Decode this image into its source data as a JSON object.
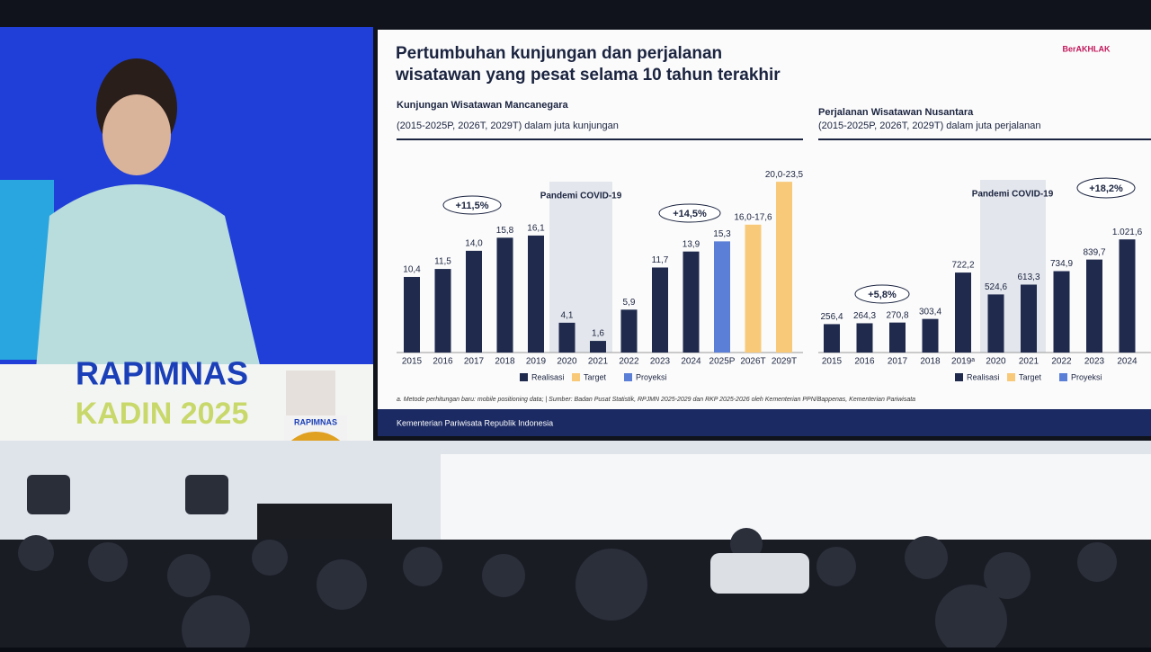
{
  "stage": {
    "banner_top": "RAPIMNAS",
    "banner_bottom": "KADIN 2025",
    "podium": "RAPIMNAS"
  },
  "slide": {
    "title": "Pertumbuhan kunjungan dan perjalanan wisatawan yang pesat selama 10 tahun terakhir",
    "logo": "BerAKHLAK",
    "footnote": "a. Metode perhitungan baru: mobile positioning data; | Sumber: Badan Pusat Statistik, RPJMN 2025-2029 dan RKP 2025-2026 oleh Kementerian PPN/Bappenas, Kementerian Pariwisata",
    "footer": "Kementerian Pariwisata Republik Indonesia"
  },
  "chart_data": [
    {
      "type": "bar",
      "title": "Kunjungan Wisatawan Mancanegara",
      "subtitle": "(2015-2025P, 2026T, 2029T) dalam juta kunjungan",
      "categories": [
        "2015",
        "2016",
        "2017",
        "2018",
        "2019",
        "2020",
        "2021",
        "2022",
        "2023",
        "2024",
        "2025P",
        "2026T",
        "2029T"
      ],
      "values": [
        10.4,
        11.5,
        14.0,
        15.8,
        16.1,
        4.1,
        1.6,
        5.9,
        11.7,
        13.9,
        15.3,
        17.6,
        23.5
      ],
      "value_labels": [
        "10,4",
        "11,5",
        "14,0",
        "15,8",
        "16,1",
        "4,1",
        "1,6",
        "5,9",
        "11,7",
        "13,9",
        "15,3",
        "16,0-17,6",
        "20,0-23,5"
      ],
      "colors": [
        "#1f2a4d",
        "#1f2a4d",
        "#1f2a4d",
        "#1f2a4d",
        "#1f2a4d",
        "#1f2a4d",
        "#1f2a4d",
        "#1f2a4d",
        "#1f2a4d",
        "#1f2a4d",
        "#5b7fd6",
        "#f9c97a",
        "#f9c97a"
      ],
      "ylim": [
        0,
        25
      ],
      "legend": [
        {
          "name": "Realisasi",
          "color": "#1f2a4d"
        },
        {
          "name": "Target",
          "color": "#f9c97a"
        },
        {
          "name": "Proyeksi",
          "color": "#5b7fd6"
        }
      ],
      "annotations": [
        "+11,5%",
        "+14,5%",
        "Pandemi COVID-19"
      ]
    },
    {
      "type": "bar",
      "title": "Perjalanan Wisatawan Nusantara",
      "subtitle": "(2015-2025P, 2026T, 2029T) dalam juta perjalanan",
      "categories": [
        "2015",
        "2016",
        "2017",
        "2018",
        "2019ᵃ",
        "2020",
        "2021",
        "2022",
        "2023",
        "2024"
      ],
      "values": [
        256.4,
        264.3,
        270.8,
        303.4,
        722.2,
        524.6,
        613.3,
        734.9,
        839.7,
        1021.6
      ],
      "value_labels": [
        "256,4",
        "264,3",
        "270,8",
        "303,4",
        "722,2",
        "524,6",
        "613,3",
        "734,9",
        "839,7",
        "1.021,6"
      ],
      "colors": [
        "#1f2a4d",
        "#1f2a4d",
        "#1f2a4d",
        "#1f2a4d",
        "#1f2a4d",
        "#1f2a4d",
        "#1f2a4d",
        "#1f2a4d",
        "#1f2a4d",
        "#1f2a4d"
      ],
      "ylim": [
        0,
        1600
      ],
      "legend": [
        {
          "name": "Realisasi",
          "color": "#1f2a4d"
        },
        {
          "name": "Target",
          "color": "#f9c97a"
        },
        {
          "name": "Proyeksi",
          "color": "#5b7fd6"
        }
      ],
      "annotations": [
        "+5,8%",
        "+18,2%",
        "Pandemi COVID-19"
      ]
    }
  ]
}
